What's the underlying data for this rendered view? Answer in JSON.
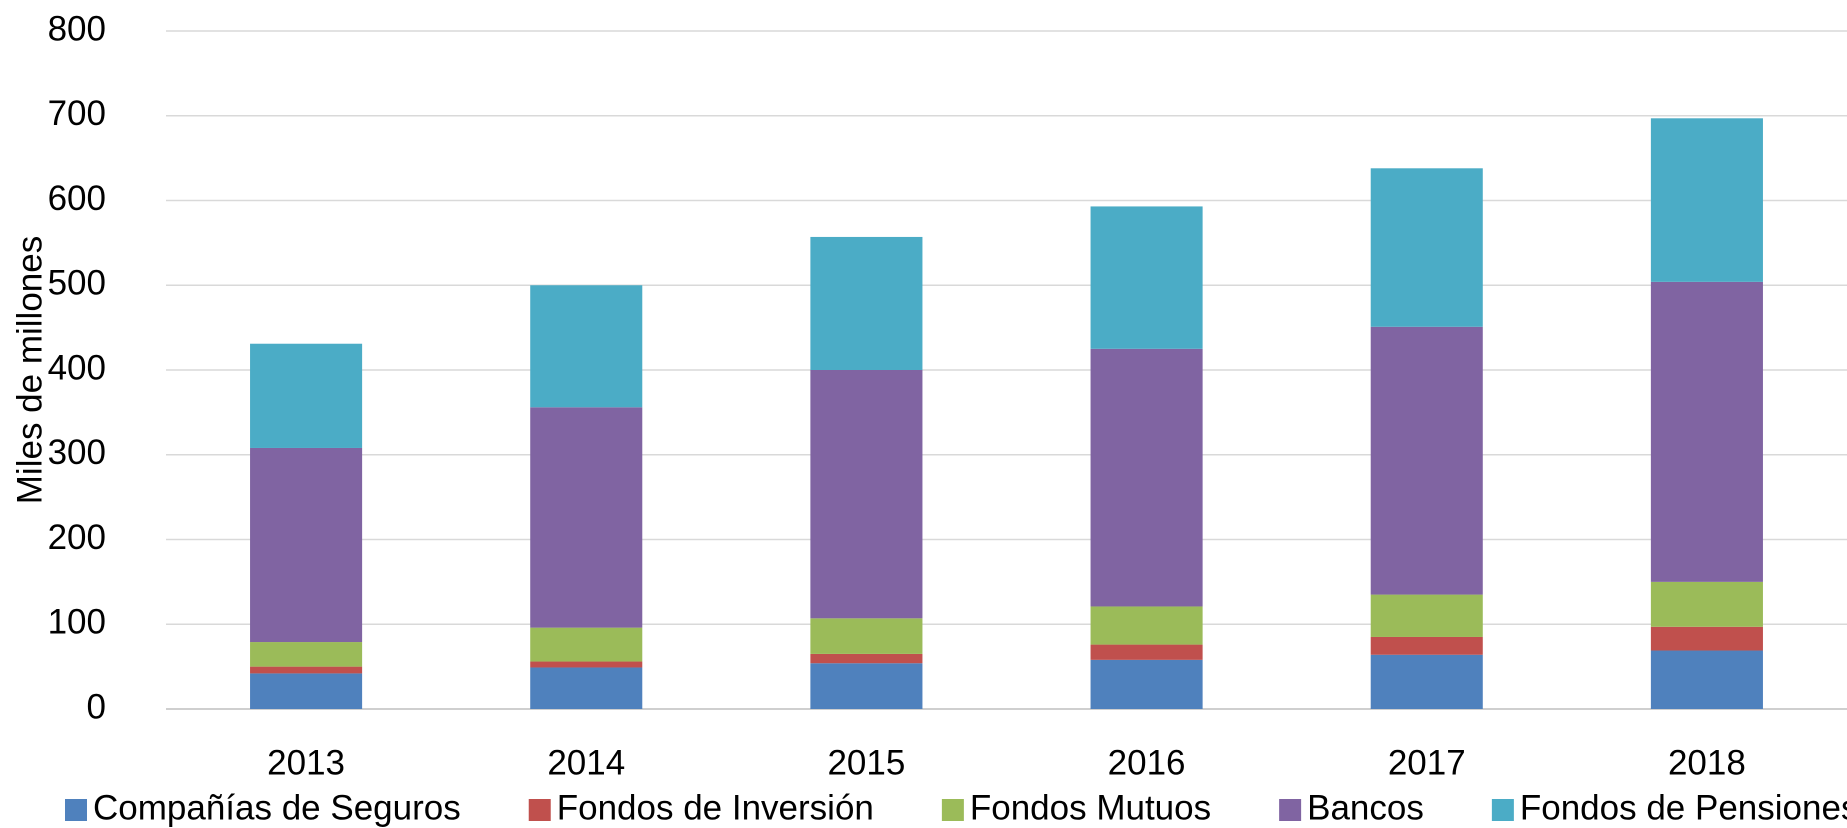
{
  "chart_data": {
    "type": "stacked_bar",
    "y_label": "Miles de millones",
    "categories": [
      "2013",
      "2014",
      "2015",
      "2016",
      "2017",
      "2018"
    ],
    "series": [
      {
        "name": "Compañías de Seguros",
        "color": "#4f81bd",
        "values": [
          42,
          49,
          54,
          58,
          64,
          69
        ]
      },
      {
        "name": "Fondos de Inversión",
        "color": "#c0504d",
        "values": [
          8,
          7,
          11,
          18,
          21,
          28
        ]
      },
      {
        "name": "Fondos Mutuos",
        "color": "#9bbb59",
        "values": [
          29,
          40,
          42,
          45,
          50,
          53
        ]
      },
      {
        "name": "Bancos",
        "color": "#8064a2",
        "values": [
          229,
          260,
          293,
          304,
          316,
          354
        ]
      },
      {
        "name": "Fondos de Pensiones",
        "color": "#4bacc6",
        "values": [
          123,
          144,
          157,
          168,
          187,
          193
        ]
      }
    ],
    "ylim": [
      0,
      800
    ],
    "yticks": [
      0,
      100,
      200,
      300,
      400,
      500,
      600,
      700,
      800
    ],
    "grid": true,
    "legend": "bottom"
  }
}
